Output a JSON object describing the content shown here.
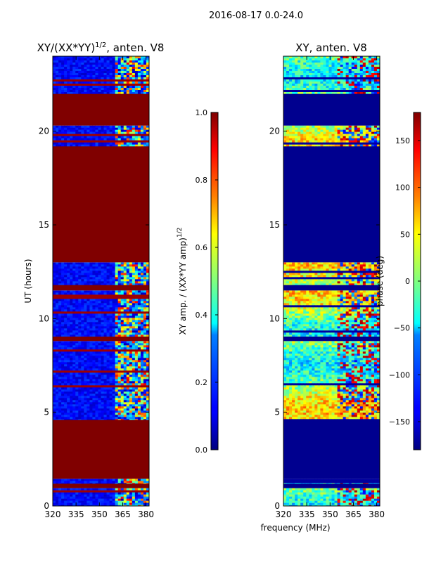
{
  "figure_title": "2016-08-17 0.0-24.0",
  "chart_data": [
    {
      "type": "heatmap",
      "title": "XY/(XX*YY)",
      "title_exponent": "1/2",
      "title_suffix": ", anten. V8",
      "xlabel": "",
      "ylabel": "UT (hours)",
      "xlim": [
        320,
        382
      ],
      "ylim": [
        0,
        24
      ],
      "x_ticks": [
        "320",
        "335",
        "350",
        "365",
        "380"
      ],
      "x_tick_values": [
        320,
        335,
        350,
        365,
        380
      ],
      "y_ticks": [
        "0",
        "5",
        "10",
        "15",
        "20"
      ],
      "y_tick_values": [
        0,
        5,
        10,
        15,
        20
      ],
      "colorbar": {
        "label": "XY amp. / (XX*YY amp)",
        "label_exponent": "1/2",
        "range": [
          0.0,
          1.0
        ],
        "ticks": [
          "0.0",
          "0.2",
          "0.4",
          "0.6",
          "0.8",
          "1.0"
        ],
        "tick_values": [
          0.0,
          0.2,
          0.4,
          0.6,
          0.8,
          1.0
        ],
        "colormap": "jet"
      },
      "bands": [
        {
          "t0": 0.0,
          "t1": 0.95,
          "state": "data"
        },
        {
          "t0": 0.95,
          "t1": 1.2,
          "state": "masked"
        },
        {
          "t0": 1.2,
          "t1": 1.45,
          "state": "data"
        },
        {
          "t0": 1.45,
          "t1": 4.6,
          "state": "masked"
        },
        {
          "t0": 4.6,
          "t1": 8.8,
          "state": "data"
        },
        {
          "t0": 8.8,
          "t1": 9.05,
          "state": "masked"
        },
        {
          "t0": 9.05,
          "t1": 11.5,
          "state": "data"
        },
        {
          "t0": 11.5,
          "t1": 11.8,
          "state": "masked"
        },
        {
          "t0": 11.8,
          "t1": 13.0,
          "state": "data"
        },
        {
          "t0": 13.0,
          "t1": 19.2,
          "state": "masked"
        },
        {
          "t0": 19.2,
          "t1": 20.3,
          "state": "data"
        },
        {
          "t0": 20.3,
          "t1": 22.0,
          "state": "masked"
        },
        {
          "t0": 22.0,
          "t1": 24.0,
          "state": "data"
        }
      ]
    },
    {
      "type": "heatmap",
      "title": "XY, anten. V8",
      "xlabel": "frequency (MHz)",
      "ylabel": "",
      "xlim": [
        320,
        382
      ],
      "ylim": [
        0,
        24
      ],
      "x_ticks": [
        "320",
        "335",
        "350",
        "365",
        "380"
      ],
      "x_tick_values": [
        320,
        335,
        350,
        365,
        380
      ],
      "y_ticks": [
        "0",
        "5",
        "10",
        "15",
        "20"
      ],
      "y_tick_values": [
        0,
        5,
        10,
        15,
        20
      ],
      "colorbar": {
        "label": "phase (deg)",
        "range": [
          -180,
          180
        ],
        "ticks": [
          "−150",
          "−100",
          "−50",
          "0",
          "50",
          "100",
          "150"
        ],
        "tick_values": [
          -150,
          -100,
          -50,
          0,
          50,
          100,
          150
        ],
        "colormap": "jet"
      },
      "bands": [
        {
          "t0": 0.0,
          "t1": 0.95,
          "state": "data"
        },
        {
          "t0": 0.95,
          "t1": 1.2,
          "state": "masked"
        },
        {
          "t0": 1.2,
          "t1": 1.45,
          "state": "data"
        },
        {
          "t0": 1.45,
          "t1": 4.6,
          "state": "masked"
        },
        {
          "t0": 4.6,
          "t1": 8.8,
          "state": "data"
        },
        {
          "t0": 8.8,
          "t1": 9.05,
          "state": "masked"
        },
        {
          "t0": 9.05,
          "t1": 11.5,
          "state": "data"
        },
        {
          "t0": 11.5,
          "t1": 11.8,
          "state": "masked"
        },
        {
          "t0": 11.8,
          "t1": 13.0,
          "state": "data"
        },
        {
          "t0": 13.0,
          "t1": 19.2,
          "state": "masked"
        },
        {
          "t0": 19.2,
          "t1": 20.3,
          "state": "data"
        },
        {
          "t0": 20.3,
          "t1": 22.0,
          "state": "masked"
        },
        {
          "t0": 22.0,
          "t1": 24.0,
          "state": "data"
        }
      ]
    }
  ],
  "colors": {
    "masked_amp": "#800000",
    "masked_phase": "#00008f",
    "background": "#ffffff",
    "axis": "#000000"
  }
}
